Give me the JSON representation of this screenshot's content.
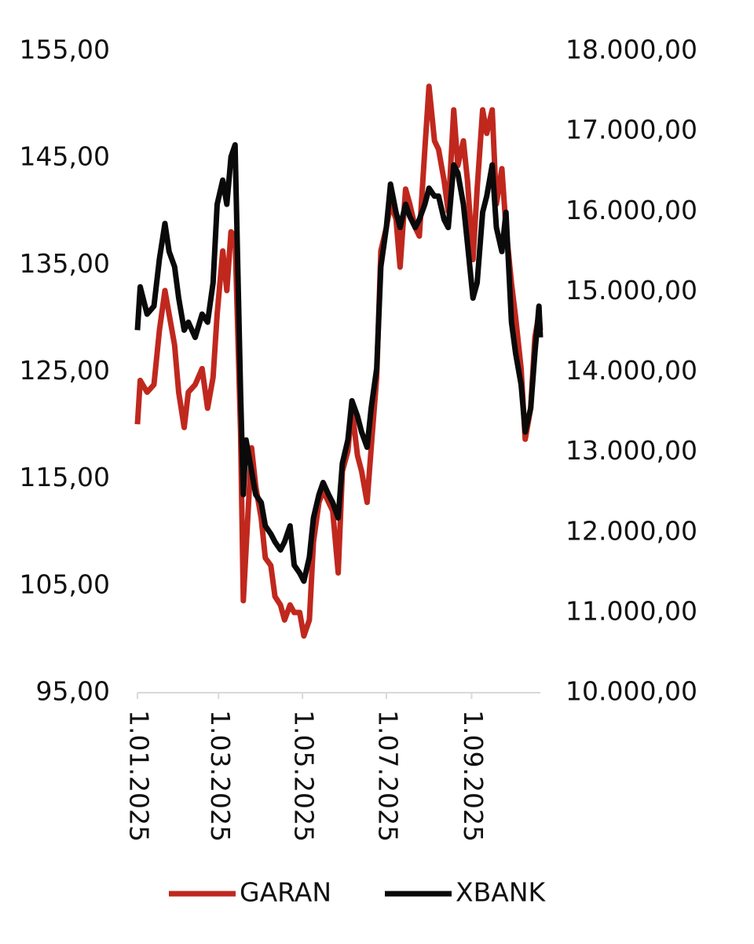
{
  "chart_data": {
    "type": "line",
    "x": [
      "2025-01-01",
      "2025-01-03",
      "2025-01-08",
      "2025-01-13",
      "2025-01-17",
      "2025-01-21",
      "2025-01-24",
      "2025-01-28",
      "2025-01-31",
      "2025-02-04",
      "2025-02-07",
      "2025-02-12",
      "2025-02-17",
      "2025-02-21",
      "2025-02-25",
      "2025-02-28",
      "2025-03-04",
      "2025-03-07",
      "2025-03-10",
      "2025-03-13",
      "2025-03-17",
      "2025-03-19",
      "2025-03-21",
      "2025-03-25",
      "2025-03-28",
      "2025-04-01",
      "2025-04-04",
      "2025-04-08",
      "2025-04-11",
      "2025-04-15",
      "2025-04-18",
      "2025-04-22",
      "2025-04-25",
      "2025-04-29",
      "2025-05-02",
      "2025-05-06",
      "2025-05-09",
      "2025-05-13",
      "2025-05-16",
      "2025-05-20",
      "2025-05-23",
      "2025-05-27",
      "2025-05-30",
      "2025-06-03",
      "2025-06-06",
      "2025-06-10",
      "2025-06-13",
      "2025-06-17",
      "2025-06-20",
      "2025-06-24",
      "2025-06-27",
      "2025-07-01",
      "2025-07-04",
      "2025-07-08",
      "2025-07-11",
      "2025-07-15",
      "2025-07-18",
      "2025-07-22",
      "2025-07-25",
      "2025-07-29",
      "2025-08-01",
      "2025-08-05",
      "2025-08-08",
      "2025-08-12",
      "2025-08-15",
      "2025-08-19",
      "2025-08-22",
      "2025-08-26",
      "2025-08-29",
      "2025-09-02",
      "2025-09-05",
      "2025-09-09",
      "2025-09-12",
      "2025-09-16",
      "2025-09-19",
      "2025-09-23",
      "2025-09-26",
      "2025-09-30",
      "2025-10-03",
      "2025-10-07",
      "2025-10-10",
      "2025-10-14",
      "2025-10-17",
      "2025-10-20",
      "2025-10-21"
    ],
    "series": [
      {
        "name": "GARAN",
        "color": "#c0281e",
        "axis": "y",
        "values": [
          120.1,
          124.2,
          123.1,
          123.8,
          128.9,
          132.6,
          130.4,
          127.5,
          123.1,
          119.8,
          123.1,
          123.8,
          125.3,
          121.6,
          124.5,
          130.4,
          136.3,
          132.6,
          138.1,
          137.7,
          119.4,
          103.6,
          108.4,
          117.9,
          114.3,
          111.3,
          107.6,
          106.9,
          104.0,
          103.2,
          101.8,
          103.2,
          102.5,
          102.5,
          100.3,
          101.8,
          109.1,
          112.8,
          113.9,
          112.8,
          112.0,
          106.2,
          115.7,
          117.6,
          121.6,
          117.2,
          115.7,
          112.8,
          117.9,
          124.5,
          136.3,
          138.5,
          140.7,
          139.3,
          134.8,
          142.1,
          140.7,
          138.5,
          137.7,
          145.8,
          151.7,
          146.6,
          145.8,
          142.9,
          140.0,
          149.5,
          144.3,
          146.6,
          142.9,
          135.5,
          142.1,
          149.5,
          147.3,
          149.5,
          140.7,
          144.0,
          138.5,
          133.3,
          130.1,
          125.3,
          118.7,
          121.6,
          128.2,
          130.4,
          128.9
        ]
      },
      {
        "name": "XBANK",
        "color": "#0a0a0a",
        "axis": "y2",
        "values": [
          14520,
          15060,
          14720,
          14820,
          15410,
          15850,
          15500,
          15310,
          14920,
          14520,
          14620,
          14430,
          14720,
          14620,
          15110,
          16090,
          16390,
          16090,
          16680,
          16830,
          13740,
          12470,
          13150,
          12760,
          12470,
          12370,
          12080,
          11980,
          11880,
          11780,
          11880,
          12080,
          11590,
          11490,
          11390,
          11690,
          12180,
          12470,
          12620,
          12470,
          12370,
          12180,
          12860,
          13150,
          13640,
          13450,
          13250,
          13060,
          13550,
          14040,
          15310,
          15800,
          16340,
          15990,
          15800,
          16090,
          15940,
          15800,
          15900,
          16090,
          16290,
          16190,
          16190,
          15900,
          15800,
          16580,
          16480,
          16090,
          15600,
          14920,
          15110,
          15990,
          16190,
          16580,
          15800,
          15500,
          15990,
          14620,
          14230,
          13840,
          13250,
          13550,
          14230,
          14820,
          14430
        ]
      }
    ],
    "xlim": [
      "2025-01-01",
      "2025-10-21"
    ],
    "xticks": [
      {
        "value": "2025-01-01",
        "label": "1.01.2025"
      },
      {
        "value": "2025-03-01",
        "label": "1.03.2025"
      },
      {
        "value": "2025-05-01",
        "label": "1.05.2025"
      },
      {
        "value": "2025-07-01",
        "label": "1.07.2025"
      },
      {
        "value": "2025-09-01",
        "label": "1.09.2025"
      }
    ],
    "ylim": [
      95,
      155
    ],
    "yticks": [
      {
        "value": 95,
        "label": "95,00"
      },
      {
        "value": 105,
        "label": "105,00"
      },
      {
        "value": 115,
        "label": "115,00"
      },
      {
        "value": 125,
        "label": "125,00"
      },
      {
        "value": 135,
        "label": "135,00"
      },
      {
        "value": 145,
        "label": "145,00"
      },
      {
        "value": 155,
        "label": "155,00"
      }
    ],
    "y2lim": [
      10000,
      18000
    ],
    "y2ticks": [
      {
        "value": 10000,
        "label": "10.000,00"
      },
      {
        "value": 11000,
        "label": "11.000,00"
      },
      {
        "value": 12000,
        "label": "12.000,00"
      },
      {
        "value": 13000,
        "label": "13.000,00"
      },
      {
        "value": 14000,
        "label": "14.000,00"
      },
      {
        "value": 15000,
        "label": "15.000,00"
      },
      {
        "value": 16000,
        "label": "16.000,00"
      },
      {
        "value": 17000,
        "label": "17.000,00"
      },
      {
        "value": 18000,
        "label": "18.000,00"
      }
    ],
    "grid": false,
    "legend": "bottom"
  }
}
